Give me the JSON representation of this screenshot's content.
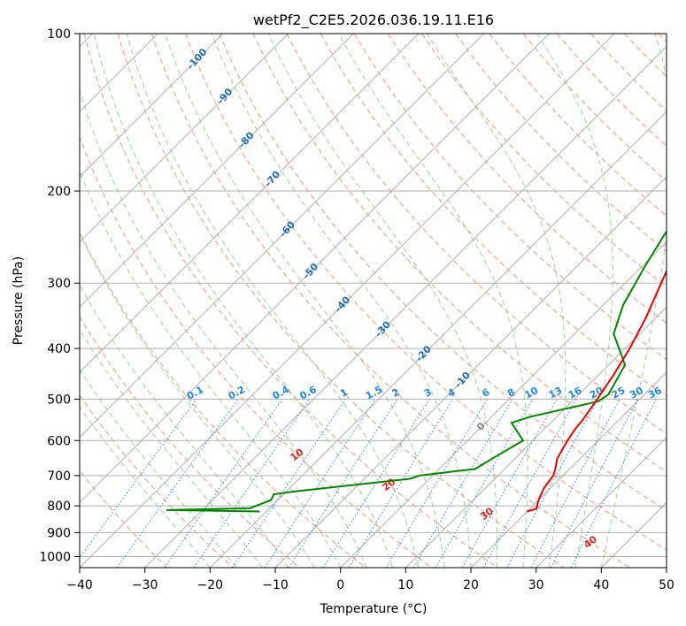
{
  "chart_data": {
    "type": "line",
    "title": "wetPf2_C2E5.2026.036.19.11.E16",
    "xlabel": "Temperature (°C)",
    "ylabel": "Pressure (hPa)",
    "xlim": [
      -40,
      50
    ],
    "ylim": [
      1050,
      100
    ],
    "x_ticks": [
      -40,
      -30,
      -20,
      -10,
      0,
      10,
      20,
      30,
      40,
      50
    ],
    "y_ticks": [
      100,
      200,
      300,
      400,
      500,
      600,
      700,
      800,
      900,
      1000
    ],
    "grid": true,
    "colors": {
      "temperature": "#ee0000",
      "dewpoint": "#008800",
      "dry_adiabat": "#f4a58a",
      "moist_adiabat": "#7fc97f",
      "mixing_ratio": "#1e88e5",
      "isotherm_label": "#1f6fb4",
      "theta_label": "#d62728",
      "grid": "#b0b0b0"
    },
    "series": [
      {
        "name": "Temperature",
        "points": [
          [
            20.0,
            820
          ],
          [
            21.0,
            810
          ],
          [
            20.0,
            780
          ],
          [
            19.0,
            740
          ],
          [
            18.5,
            700
          ],
          [
            17.8,
            680
          ],
          [
            16.5,
            650
          ],
          [
            15.3,
            600
          ],
          [
            14.7,
            570
          ],
          [
            14.5,
            550
          ],
          [
            13.5,
            500
          ],
          [
            12.3,
            450
          ],
          [
            10.7,
            400
          ],
          [
            8.5,
            350
          ],
          [
            5.5,
            300
          ],
          [
            2.0,
            250
          ],
          [
            -1.5,
            210
          ],
          [
            -3.8,
            200
          ],
          [
            -1.8,
            190
          ],
          [
            4.0,
            175
          ],
          [
            7.0,
            160
          ],
          [
            8.5,
            145
          ],
          [
            9.3,
            130
          ],
          [
            12.5,
            115
          ],
          [
            17.5,
            100
          ]
        ]
      },
      {
        "name": "Dewpoint",
        "points": [
          [
            -21.0,
            820
          ],
          [
            -35.5,
            815
          ],
          [
            -23.0,
            808
          ],
          [
            -21.0,
            780
          ],
          [
            -21.5,
            760
          ],
          [
            -18.5,
            750
          ],
          [
            -3.0,
            710
          ],
          [
            -2.0,
            700
          ],
          [
            5.5,
            680
          ],
          [
            6.5,
            650
          ],
          [
            8.5,
            600
          ],
          [
            4.0,
            555
          ],
          [
            6.0,
            540
          ],
          [
            14.0,
            505
          ],
          [
            14.5,
            490
          ],
          [
            12.5,
            430
          ],
          [
            6.0,
            375
          ],
          [
            3.0,
            330
          ],
          [
            0.5,
            280
          ],
          [
            -1.3,
            245
          ],
          [
            -3.8,
            200
          ],
          [
            -3.5,
            190
          ],
          [
            -4.8,
            185
          ],
          [
            -8.0,
            175
          ],
          [
            -10.7,
            163
          ],
          [
            -9.5,
            150
          ],
          [
            -4.0,
            135
          ],
          [
            -3.5,
            120
          ],
          [
            -2.5,
            110
          ],
          [
            -0.3,
            100
          ]
        ]
      }
    ],
    "isotherm_labels": [
      "-100",
      "-90",
      "-80",
      "-70",
      "-60",
      "-50",
      "-40",
      "-30",
      "-20",
      "-10",
      "0"
    ],
    "mixing_ratio_labels": [
      "0.1",
      "0.2",
      "0.4",
      "0.6",
      "1",
      "1.5",
      "2",
      "3",
      "4",
      "6",
      "8",
      "10",
      "13",
      "16",
      "20",
      "25",
      "30",
      "36"
    ],
    "theta_labels": [
      "10",
      "20",
      "30",
      "40"
    ]
  }
}
